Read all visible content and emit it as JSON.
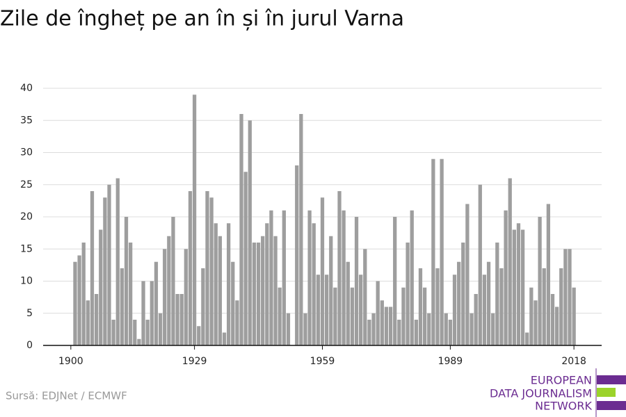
{
  "chart_data": {
    "type": "bar",
    "title": "Zile de îngheț pe an în și în jurul Varna",
    "source": "Sursă: EDJNet / ECMWF",
    "logo": [
      "EUROPEAN",
      "DATA JOURNALISM",
      "NETWORK"
    ],
    "color": "#9e9e9e",
    "grid": true,
    "x": [
      1901,
      1902,
      1903,
      1904,
      1905,
      1906,
      1907,
      1908,
      1909,
      1910,
      1911,
      1912,
      1913,
      1914,
      1915,
      1916,
      1917,
      1918,
      1919,
      1920,
      1921,
      1922,
      1923,
      1924,
      1925,
      1926,
      1927,
      1928,
      1929,
      1930,
      1931,
      1932,
      1933,
      1934,
      1935,
      1936,
      1937,
      1938,
      1939,
      1940,
      1941,
      1942,
      1943,
      1944,
      1945,
      1946,
      1947,
      1948,
      1949,
      1950,
      1951,
      1952,
      1953,
      1954,
      1955,
      1956,
      1957,
      1958,
      1959,
      1960,
      1961,
      1962,
      1963,
      1964,
      1965,
      1966,
      1967,
      1968,
      1969,
      1970,
      1971,
      1972,
      1973,
      1974,
      1975,
      1976,
      1977,
      1978,
      1979,
      1980,
      1981,
      1982,
      1983,
      1984,
      1985,
      1986,
      1987,
      1988,
      1989,
      1990,
      1991,
      1992,
      1993,
      1994,
      1995,
      1996,
      1997,
      1998,
      1999,
      2000,
      2001,
      2002,
      2003,
      2004,
      2005,
      2006,
      2007,
      2008,
      2009,
      2010,
      2011,
      2012,
      2013,
      2014,
      2015,
      2016,
      2017,
      2018
    ],
    "values": [
      13,
      14,
      16,
      7,
      24,
      8,
      18,
      23,
      25,
      4,
      26,
      12,
      20,
      16,
      4,
      1,
      10,
      4,
      10,
      13,
      5,
      15,
      17,
      20,
      8,
      8,
      15,
      24,
      39,
      3,
      12,
      24,
      23,
      19,
      17,
      2,
      19,
      13,
      7,
      36,
      27,
      35,
      16,
      16,
      17,
      19,
      21,
      17,
      9,
      21,
      5,
      null,
      28,
      36,
      5,
      21,
      19,
      11,
      23,
      11,
      17,
      9,
      24,
      21,
      13,
      9,
      20,
      11,
      15,
      4,
      5,
      10,
      7,
      6,
      6,
      20,
      4,
      9,
      16,
      21,
      4,
      12,
      9,
      5,
      29,
      12,
      29,
      5,
      4,
      11,
      13,
      16,
      22,
      5,
      8,
      25,
      11,
      13,
      5,
      16,
      12,
      21,
      26,
      18,
      19,
      18,
      2,
      9,
      7,
      20,
      12,
      22,
      8,
      6,
      12,
      15,
      15,
      9
    ],
    "xlim": [
      1893.5,
      2024.5
    ],
    "xticks": [
      1900,
      1929,
      1959,
      1989,
      2018
    ],
    "ylim": [
      0,
      40
    ],
    "yticks": [
      0,
      5,
      10,
      15,
      20,
      25,
      30,
      35,
      40
    ]
  }
}
